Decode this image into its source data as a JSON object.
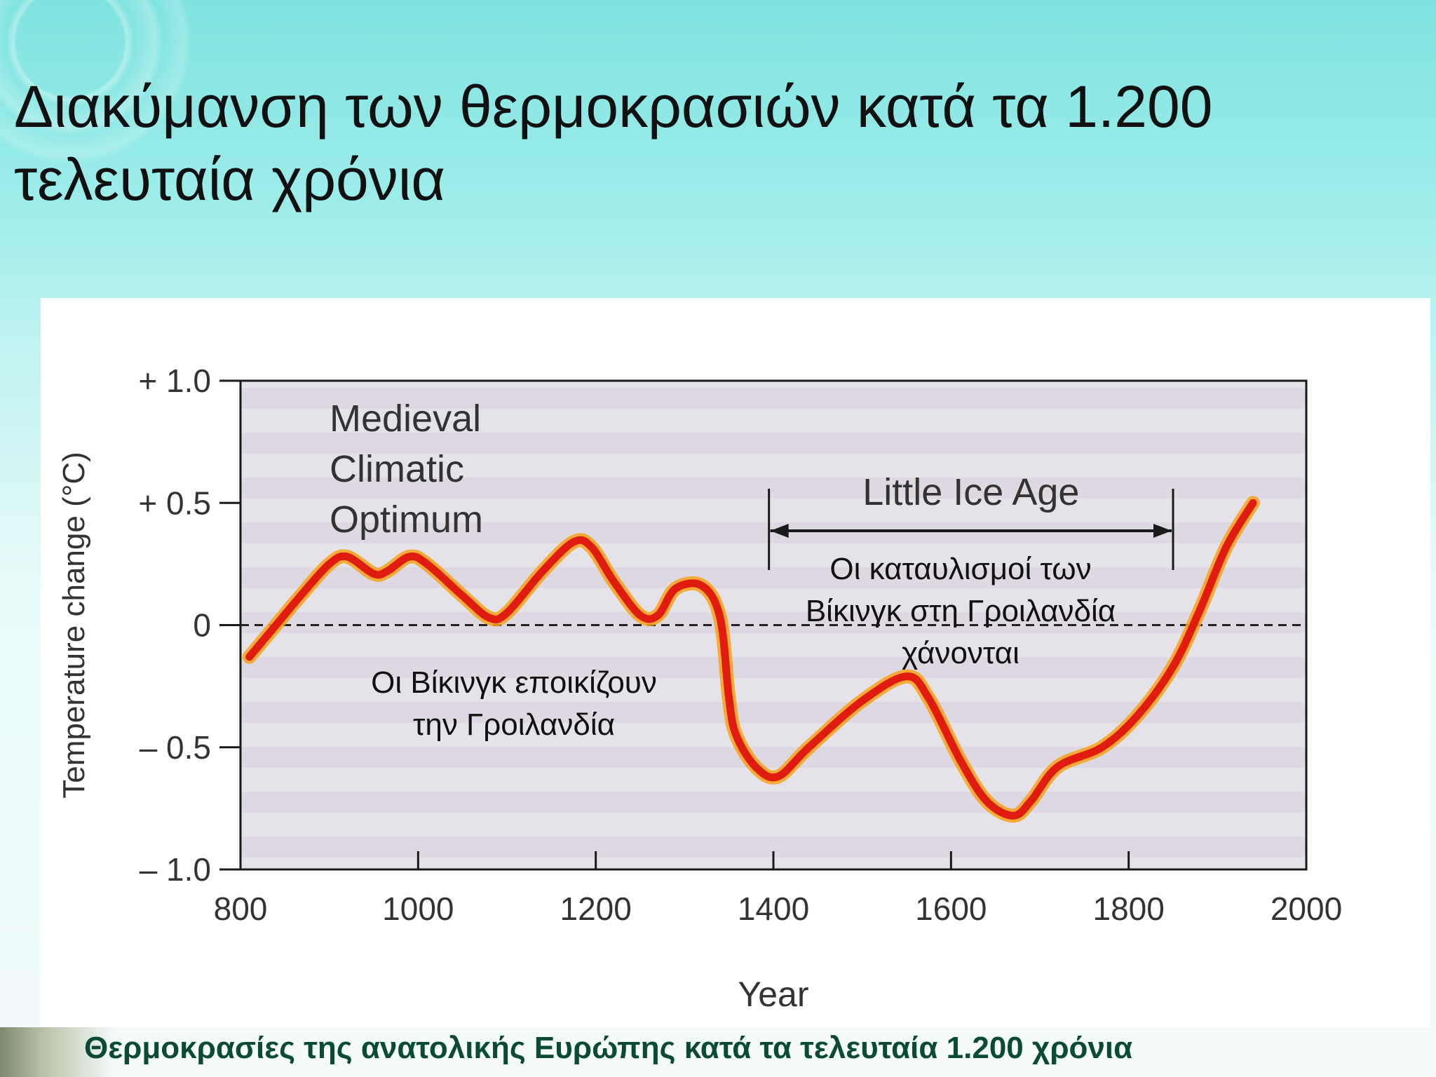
{
  "slide": {
    "title_line1": "Διακύμανση των θερμοκρασιών κατά τα 1.200",
    "title_line2": "τελευταία χρόνια",
    "caption": "Θερμοκρασίες της ανατολικής Ευρώπης κατά τα τελευταία 1.200 χρόνια"
  },
  "chart_data": {
    "type": "line",
    "xlabel": "Year",
    "ylabel": "Temperature change  (°C)",
    "xlim": [
      800,
      2000
    ],
    "ylim": [
      -1.0,
      1.0
    ],
    "xticks": [
      800,
      1000,
      1200,
      1400,
      1600,
      1800,
      2000
    ],
    "yticks": [
      {
        "value": 1.0,
        "label": "+ 1.0"
      },
      {
        "value": 0.5,
        "label": "+ 0.5"
      },
      {
        "value": 0,
        "label": "0"
      },
      {
        "value": -0.5,
        "label": "– 0.5"
      },
      {
        "value": -1.0,
        "label": "– 1.0"
      }
    ],
    "reference_line": {
      "value": 0,
      "style": "dashed"
    },
    "series": [
      {
        "color": "#e01b10",
        "points": [
          [
            810,
            -0.13
          ],
          [
            840,
            0.0
          ],
          [
            870,
            0.13
          ],
          [
            900,
            0.25
          ],
          [
            920,
            0.28
          ],
          [
            950,
            0.21
          ],
          [
            965,
            0.22
          ],
          [
            990,
            0.28
          ],
          [
            1010,
            0.25
          ],
          [
            1050,
            0.12
          ],
          [
            1080,
            0.03
          ],
          [
            1100,
            0.05
          ],
          [
            1140,
            0.22
          ],
          [
            1175,
            0.34
          ],
          [
            1195,
            0.32
          ],
          [
            1220,
            0.18
          ],
          [
            1250,
            0.04
          ],
          [
            1270,
            0.04
          ],
          [
            1290,
            0.15
          ],
          [
            1320,
            0.16
          ],
          [
            1340,
            0.03
          ],
          [
            1350,
            -0.3
          ],
          [
            1358,
            -0.45
          ],
          [
            1380,
            -0.58
          ],
          [
            1405,
            -0.62
          ],
          [
            1440,
            -0.5
          ],
          [
            1500,
            -0.31
          ],
          [
            1550,
            -0.21
          ],
          [
            1575,
            -0.3
          ],
          [
            1610,
            -0.55
          ],
          [
            1640,
            -0.72
          ],
          [
            1670,
            -0.78
          ],
          [
            1690,
            -0.72
          ],
          [
            1720,
            -0.58
          ],
          [
            1770,
            -0.5
          ],
          [
            1810,
            -0.37
          ],
          [
            1850,
            -0.17
          ],
          [
            1880,
            0.06
          ],
          [
            1910,
            0.32
          ],
          [
            1940,
            0.5
          ]
        ]
      }
    ],
    "annotations": {
      "medieval": [
        "Medieval",
        "Climatic",
        "Optimum"
      ],
      "little_ice_age": {
        "label": "Little Ice Age",
        "from": 1395,
        "to": 1850,
        "y": 0.42
      },
      "vikings_settle": [
        "Οι Βίκινγκ εποικίζουν",
        "την Γροιλανδία"
      ],
      "vikings_lost": [
        "Οι καταυλισμοί των",
        "Βίκινγκ στη Γροιλανδία",
        "χάνονται"
      ]
    },
    "grid": false,
    "legend": "none"
  }
}
